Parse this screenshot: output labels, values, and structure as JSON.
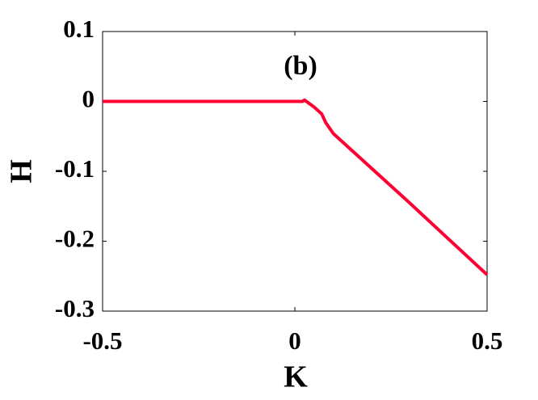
{
  "chart_data": {
    "type": "line",
    "title": "(b)",
    "x_label": "K",
    "y_label": "H",
    "x": [
      -0.5,
      0,
      0.02,
      0.025,
      0.03,
      0.05,
      0.07,
      0.08,
      0.1,
      0.2,
      0.3,
      0.4,
      0.5
    ],
    "series": [
      {
        "color": "#ff0033",
        "values": [
          0,
          0,
          0,
          0.002,
          0,
          -0.008,
          -0.018,
          -0.03,
          -0.046,
          -0.096,
          -0.146,
          -0.197,
          -0.248
        ]
      }
    ],
    "xlim": [
      -0.5,
      0.5
    ],
    "xticks": [
      -0.5,
      0,
      0.5
    ],
    "ylim": [
      -0.3,
      0.1
    ],
    "yticks": [
      -0.3,
      -0.2,
      -0.1,
      0,
      0.1
    ],
    "grid": false
  }
}
